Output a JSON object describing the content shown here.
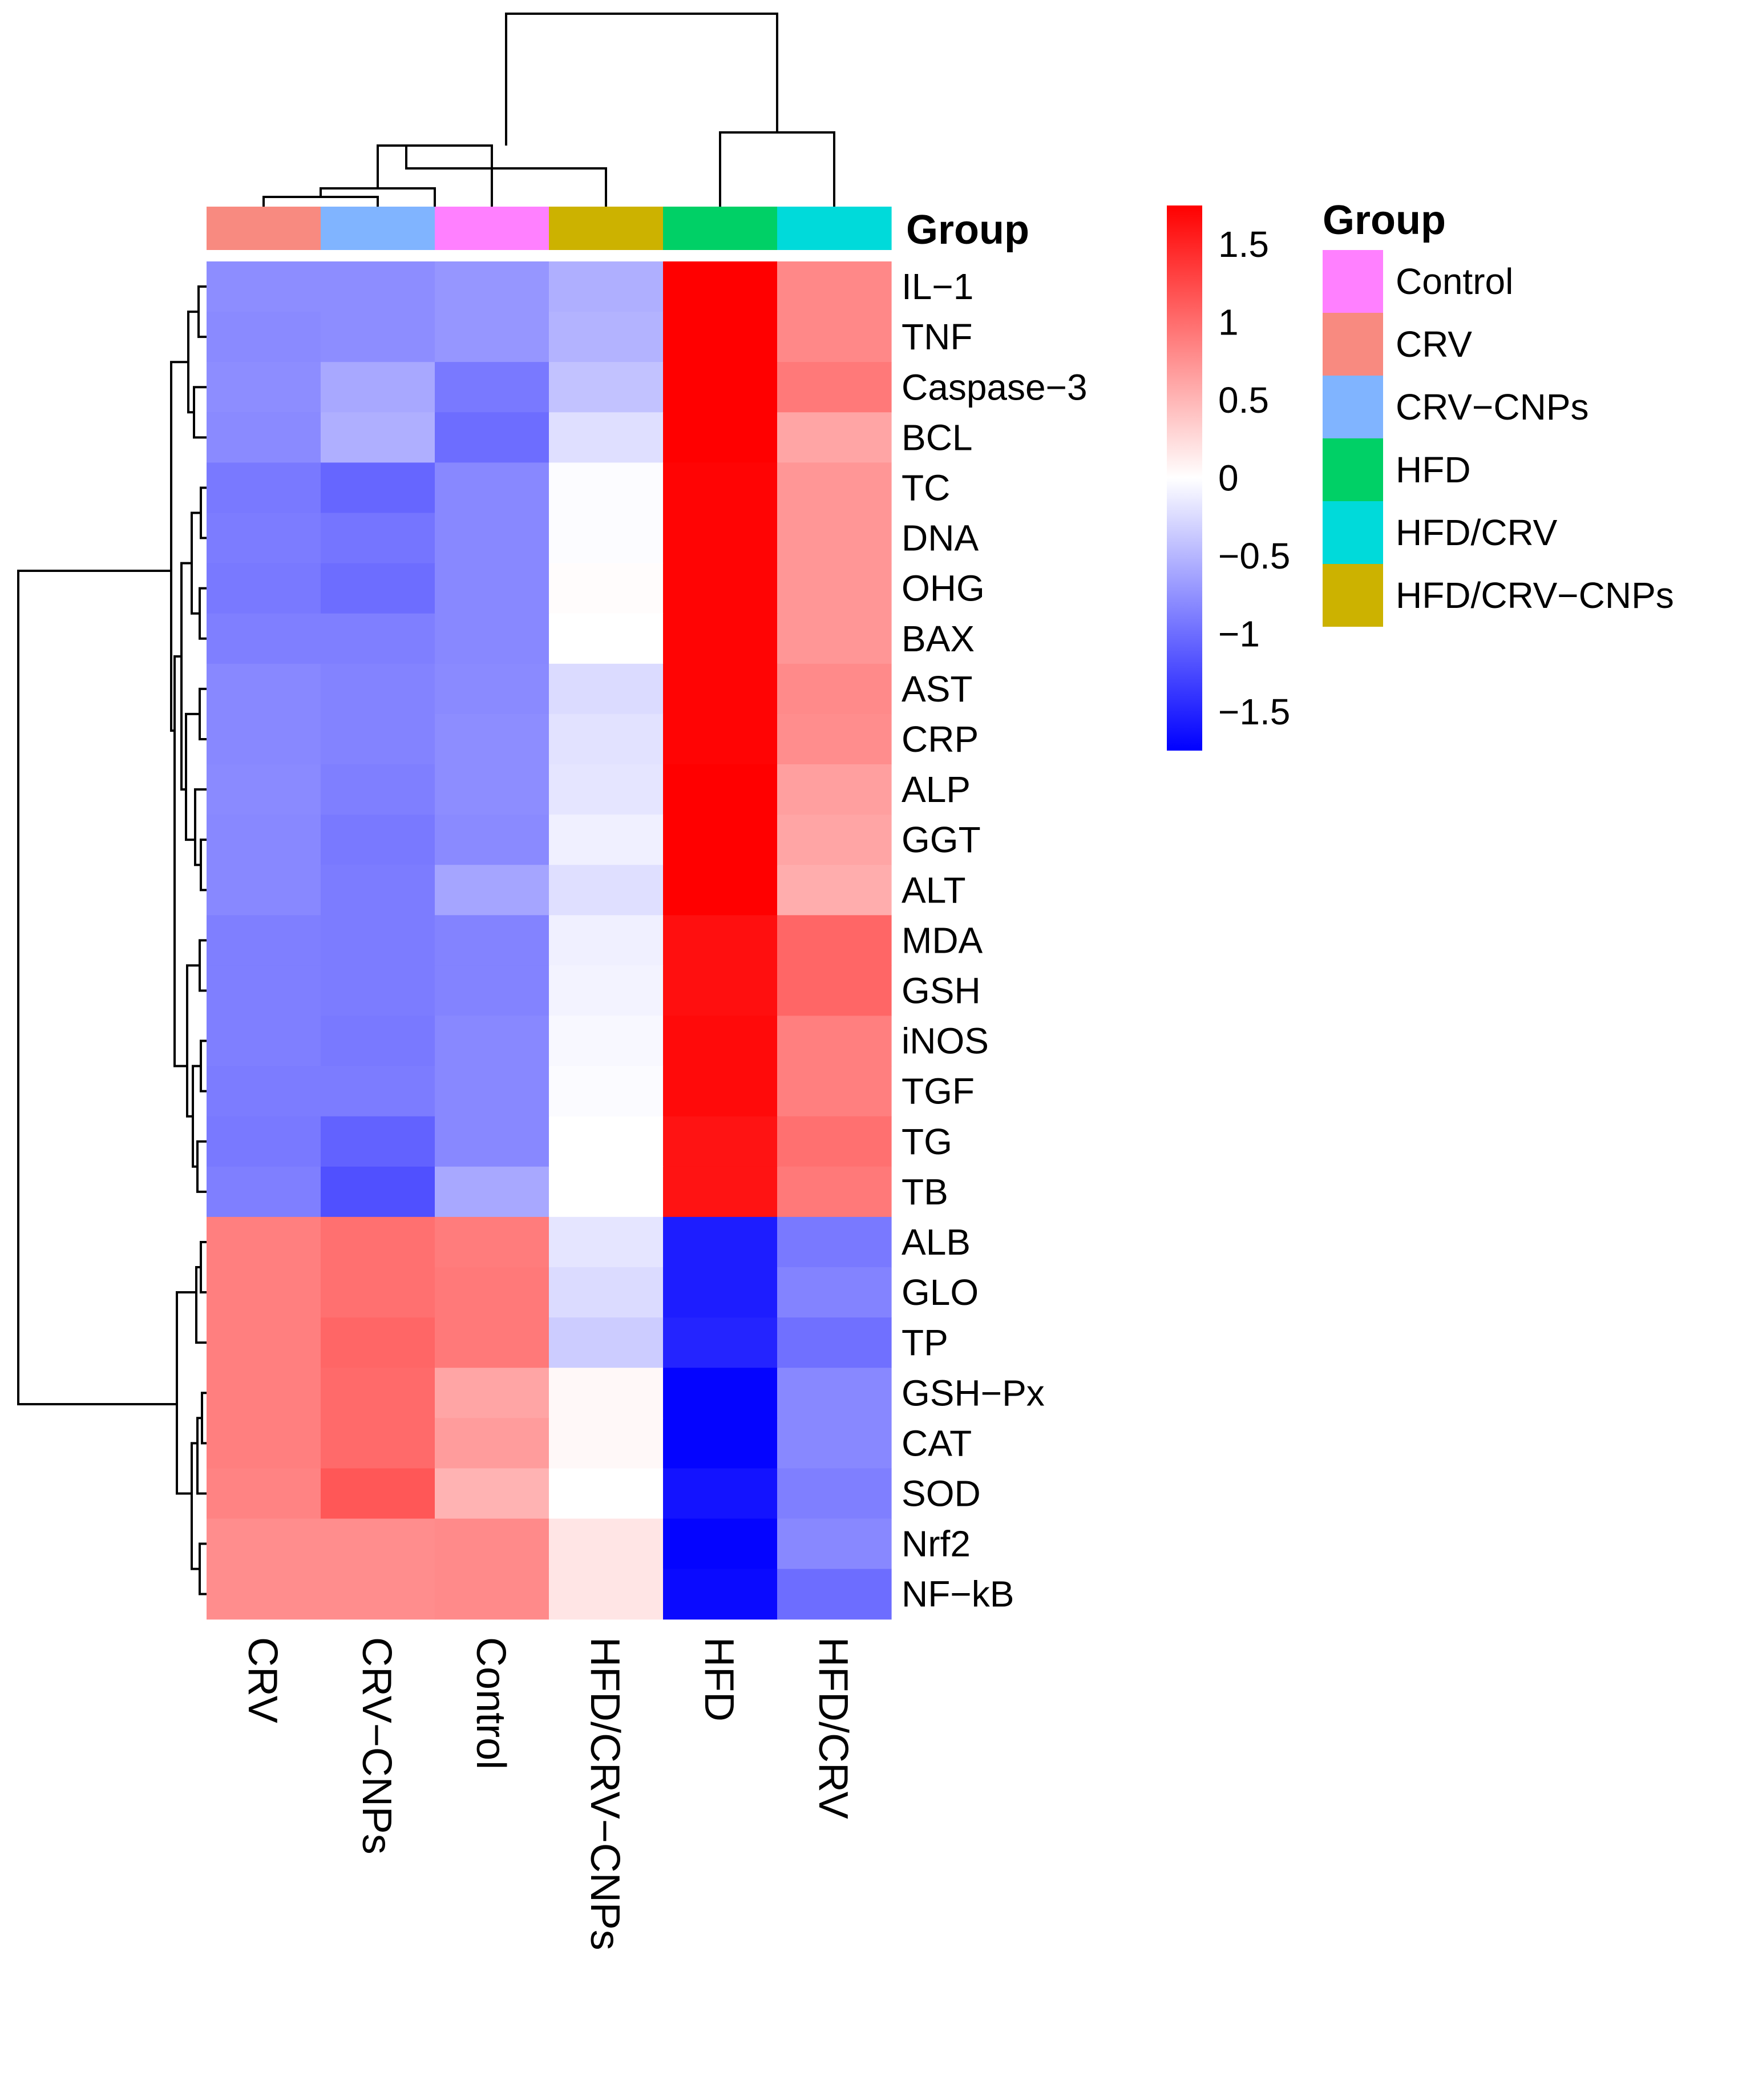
{
  "chart_data": {
    "type": "heatmap",
    "title": "",
    "columns": [
      "CRV",
      "CRV−CNPs",
      "Control",
      "HFD/CRV−CNPs",
      "HFD",
      "HFD/CRV"
    ],
    "column_groups": [
      "CRV",
      "CRV−CNPs",
      "Control",
      "HFD/CRV−CNPs",
      "HFD",
      "HFD/CRV"
    ],
    "rows": [
      "IL−1",
      "TNF",
      "Caspase−3",
      "BCL",
      "TC",
      "DNA",
      "OHG",
      "BAX",
      "AST",
      "CRP",
      "ALP",
      "GGT",
      "ALT",
      "MDA",
      "GSH",
      "iNOS",
      "TGF",
      "TG",
      "TB",
      "ALB",
      "GLO",
      "TP",
      "GSH−Px",
      "CAT",
      "SOD",
      "Nrf2",
      "NF−kB"
    ],
    "values": [
      [
        -0.78,
        -0.78,
        -0.72,
        -0.55,
        1.75,
        0.82
      ],
      [
        -0.8,
        -0.78,
        -0.72,
        -0.52,
        1.75,
        0.82
      ],
      [
        -0.78,
        -0.6,
        -0.92,
        -0.42,
        1.78,
        0.92
      ],
      [
        -0.8,
        -0.55,
        -1.0,
        -0.22,
        1.78,
        0.62
      ],
      [
        -0.92,
        -1.05,
        -0.82,
        -0.02,
        1.72,
        0.72
      ],
      [
        -0.9,
        -0.95,
        -0.82,
        -0.02,
        1.72,
        0.72
      ],
      [
        -0.92,
        -1.0,
        -0.82,
        0.02,
        1.72,
        0.72
      ],
      [
        -0.88,
        -0.88,
        -0.82,
        0.0,
        1.72,
        0.72
      ],
      [
        -0.82,
        -0.85,
        -0.8,
        -0.25,
        1.72,
        0.8
      ],
      [
        -0.82,
        -0.85,
        -0.78,
        -0.2,
        1.72,
        0.78
      ],
      [
        -0.8,
        -0.88,
        -0.78,
        -0.18,
        1.75,
        0.66
      ],
      [
        -0.82,
        -0.92,
        -0.8,
        -0.1,
        1.75,
        0.62
      ],
      [
        -0.82,
        -0.9,
        -0.62,
        -0.22,
        1.75,
        0.56
      ],
      [
        -0.88,
        -0.9,
        -0.85,
        -0.1,
        1.65,
        1.05
      ],
      [
        -0.88,
        -0.9,
        -0.85,
        -0.08,
        1.65,
        1.05
      ],
      [
        -0.88,
        -0.92,
        -0.82,
        -0.05,
        1.68,
        0.88
      ],
      [
        -0.9,
        -0.9,
        -0.82,
        -0.03,
        1.68,
        0.88
      ],
      [
        -0.92,
        -1.08,
        -0.82,
        0.0,
        1.62,
        0.98
      ],
      [
        -0.88,
        -1.2,
        -0.6,
        0.0,
        1.62,
        0.92
      ],
      [
        0.88,
        0.98,
        0.9,
        -0.18,
        -1.55,
        -0.92
      ],
      [
        0.88,
        0.98,
        0.92,
        -0.25,
        -1.55,
        -0.85
      ],
      [
        0.88,
        1.05,
        0.92,
        -0.35,
        -1.5,
        -0.98
      ],
      [
        0.88,
        1.02,
        0.62,
        0.05,
        -1.72,
        -0.82
      ],
      [
        0.88,
        1.02,
        0.68,
        0.05,
        -1.72,
        -0.82
      ],
      [
        0.85,
        1.15,
        0.52,
        0.0,
        -1.62,
        -0.88
      ],
      [
        0.78,
        0.78,
        0.8,
        0.18,
        -1.72,
        -0.82
      ],
      [
        0.78,
        0.78,
        0.8,
        0.18,
        -1.68,
        -1.0
      ]
    ],
    "color_scale": {
      "low": "#0000ff",
      "mid": "#ffffff",
      "high": "#ff0000",
      "range": [
        -1.75,
        1.75
      ],
      "ticks": [
        1.5,
        1,
        0.5,
        0,
        -0.5,
        -1,
        -1.5
      ],
      "tick_labels": [
        "1.5",
        "1",
        "0.5",
        "0",
        "−0.5",
        "−1",
        "−1.5"
      ]
    },
    "annotation_label": "Group",
    "legend": {
      "title": "Group",
      "entries": [
        {
          "label": "Control",
          "color": "#ff80ff"
        },
        {
          "label": "CRV",
          "color": "#f88a80"
        },
        {
          "label": "CRV−CNPs",
          "color": "#80b4ff"
        },
        {
          "label": "HFD",
          "color": "#00d066"
        },
        {
          "label": "HFD/CRV",
          "color": "#00dada"
        },
        {
          "label": "HFD/CRV−CNPs",
          "color": "#ccb200"
        }
      ]
    },
    "group_colors": {
      "CRV": "#f88a80",
      "CRV−CNPs": "#80b4ff",
      "Control": "#ff80ff",
      "HFD/CRV−CNPs": "#ccb200",
      "HFD": "#00d066",
      "HFD/CRV": "#00dada"
    }
  }
}
